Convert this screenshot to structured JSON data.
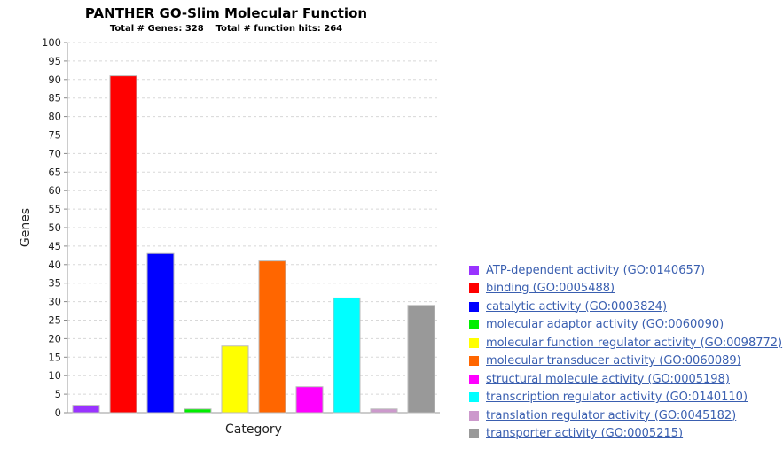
{
  "chart_data": {
    "type": "bar",
    "title": "PANTHER GO-Slim Molecular Function",
    "subtitle": "Total # Genes: 328    Total # function hits: 264",
    "xlabel": "Category",
    "ylabel": "Genes",
    "ylim": [
      0,
      100
    ],
    "yticks": [
      "0",
      "5",
      "10",
      "15",
      "20",
      "25",
      "30",
      "35",
      "40",
      "45",
      "50",
      "55",
      "60",
      "65",
      "70",
      "75",
      "80",
      "85",
      "90",
      "95",
      "100"
    ],
    "grid": "horizontal dashed",
    "legend_position": "right",
    "categories": [
      "ATP-dependent activity (GO:0140657)",
      "binding (GO:0005488)",
      "catalytic activity (GO:0003824)",
      "molecular adaptor activity (GO:0060090)",
      "molecular function regulator activity (GO:0098772)",
      "molecular transducer activity (GO:0060089)",
      "structural molecule activity (GO:0005198)",
      "transcription regulator activity (GO:0140110)",
      "translation regulator activity (GO:0045182)",
      "transporter activity (GO:0005215)"
    ],
    "values": [
      2,
      91,
      43,
      1,
      18,
      41,
      7,
      31,
      1,
      29
    ],
    "colors": [
      "#9933ff",
      "#ff0000",
      "#0000ff",
      "#00ee00",
      "#ffff00",
      "#ff6600",
      "#ff00ff",
      "#00ffff",
      "#cc99cc",
      "#999999"
    ]
  }
}
